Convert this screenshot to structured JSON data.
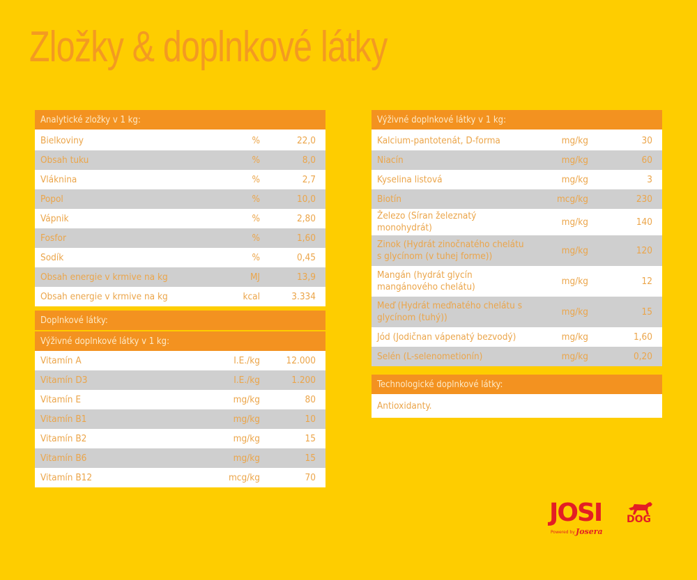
{
  "title": "Zložky & doplnkové látky",
  "colors": {
    "background": "#fecd00",
    "accent_orange": "#f39220",
    "title_orange": "#f39a21",
    "row_white": "#ffffff",
    "row_gray": "#cfcfcf",
    "text": "#eba54a",
    "logo_red": "#e31e24"
  },
  "left": {
    "analytical": {
      "header": "Analytické zložky v 1 kg:",
      "rows": [
        {
          "name": "Bielkoviny",
          "unit": "%",
          "value": "22,0"
        },
        {
          "name": "Obsah tuku",
          "unit": "%",
          "value": "8,0"
        },
        {
          "name": "Vláknina",
          "unit": "%",
          "value": "2,7"
        },
        {
          "name": "Popol",
          "unit": "%",
          "value": "10,0"
        },
        {
          "name": "Vápnik",
          "unit": "%",
          "value": "2,80"
        },
        {
          "name": "Fosfor",
          "unit": "%",
          "value": "1,60"
        },
        {
          "name": "Sodík",
          "unit": "%",
          "value": "0,45"
        },
        {
          "name": "Obsah energie v krmive na kg",
          "unit": "MJ",
          "value": "13,9"
        },
        {
          "name": "Obsah energie v krmive na kg",
          "unit": "kcal",
          "value": "3.334"
        }
      ]
    },
    "additives": {
      "header": "Doplnkové látky:",
      "subheader": "Výživné doplnkové látky v 1 kg:",
      "rows": [
        {
          "name": "Vitamín A",
          "unit": "I.E./kg",
          "value": "12.000"
        },
        {
          "name": "Vitamín D3",
          "unit": "I.E./kg",
          "value": "1.200"
        },
        {
          "name": "Vitamín E",
          "unit": "mg/kg",
          "value": "80"
        },
        {
          "name": "Vitamín B1",
          "unit": "mg/kg",
          "value": "10"
        },
        {
          "name": "Vitamín B2",
          "unit": "mg/kg",
          "value": "15"
        },
        {
          "name": "Vitamín B6",
          "unit": "mg/kg",
          "value": "15"
        },
        {
          "name": "Vitamín B12",
          "unit": "mcg/kg",
          "value": "70"
        }
      ]
    }
  },
  "right": {
    "nutritional": {
      "header": "Výživné doplnkové látky v 1 kg:",
      "rows": [
        {
          "name": "Kalcium-pantotenát, D-forma",
          "unit": "mg/kg",
          "value": "30"
        },
        {
          "name": "Niacín",
          "unit": "mg/kg",
          "value": "60"
        },
        {
          "name": "Kyselina listová",
          "unit": "mg/kg",
          "value": "3"
        },
        {
          "name": "Biotín",
          "unit": "mcg/kg",
          "value": "230"
        },
        {
          "name": "Železo (Síran železnatý monohydrát)",
          "unit": "mg/kg",
          "value": "140"
        },
        {
          "name": "Zinok (Hydrát zinočnatého chelátu s glycínom (v tuhej forme))",
          "unit": "mg/kg",
          "value": "120"
        },
        {
          "name": "Mangán (hydrát glycín mangánového chelátu)",
          "unit": "mg/kg",
          "value": "12"
        },
        {
          "name": "Meď (Hydrát meďnatého chelátu s glycínom (tuhý))",
          "unit": "mg/kg",
          "value": "15"
        },
        {
          "name": "Jód (Jodičnan vápenatý bezvodý)",
          "unit": "mg/kg",
          "value": "1,60"
        },
        {
          "name": "Selén (L-selenometionín)",
          "unit": "mg/kg",
          "value": "0,20"
        }
      ]
    },
    "technological": {
      "header": "Technologické doplnkové látky:",
      "value": "Antioxidanty."
    }
  },
  "logo": {
    "brand": "JOSI",
    "sub": "DOG",
    "powered": "Powered by",
    "maker": "Josera"
  }
}
